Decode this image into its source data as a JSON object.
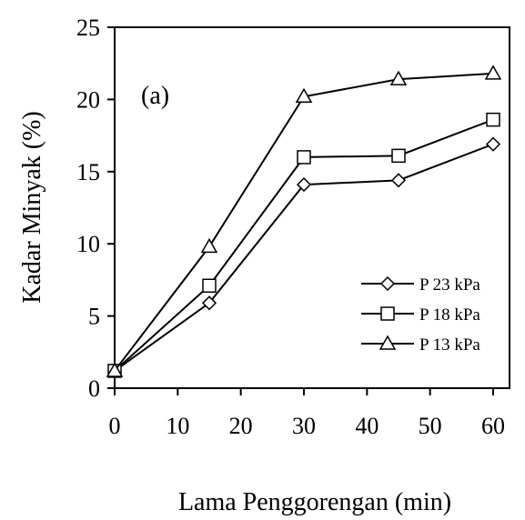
{
  "chart_data": {
    "type": "line",
    "panel_label": "(a)",
    "xlabel": "Lama  Penggorengan (min)",
    "ylabel": "Kadar Minyak (%)",
    "xlim": [
      0,
      60
    ],
    "ylim": [
      0,
      25
    ],
    "xticks": [
      "0",
      "10",
      "20",
      "30",
      "40",
      "50",
      "60"
    ],
    "yticks": [
      "0",
      "5",
      "10",
      "15",
      "20",
      "25"
    ],
    "x": [
      0,
      15,
      30,
      45,
      60
    ],
    "grid": false,
    "legend_position": "bottom-right",
    "series": [
      {
        "name": "P 23 kPa",
        "marker": "diamond",
        "values": [
          1.2,
          5.9,
          14.1,
          14.4,
          16.9
        ]
      },
      {
        "name": "P 18 kPa",
        "marker": "square",
        "values": [
          1.2,
          7.1,
          16.0,
          16.1,
          18.6
        ]
      },
      {
        "name": "P 13 kPa",
        "marker": "triangle",
        "values": [
          1.2,
          9.8,
          20.2,
          21.4,
          21.8
        ]
      }
    ],
    "line_color": "#000000"
  }
}
